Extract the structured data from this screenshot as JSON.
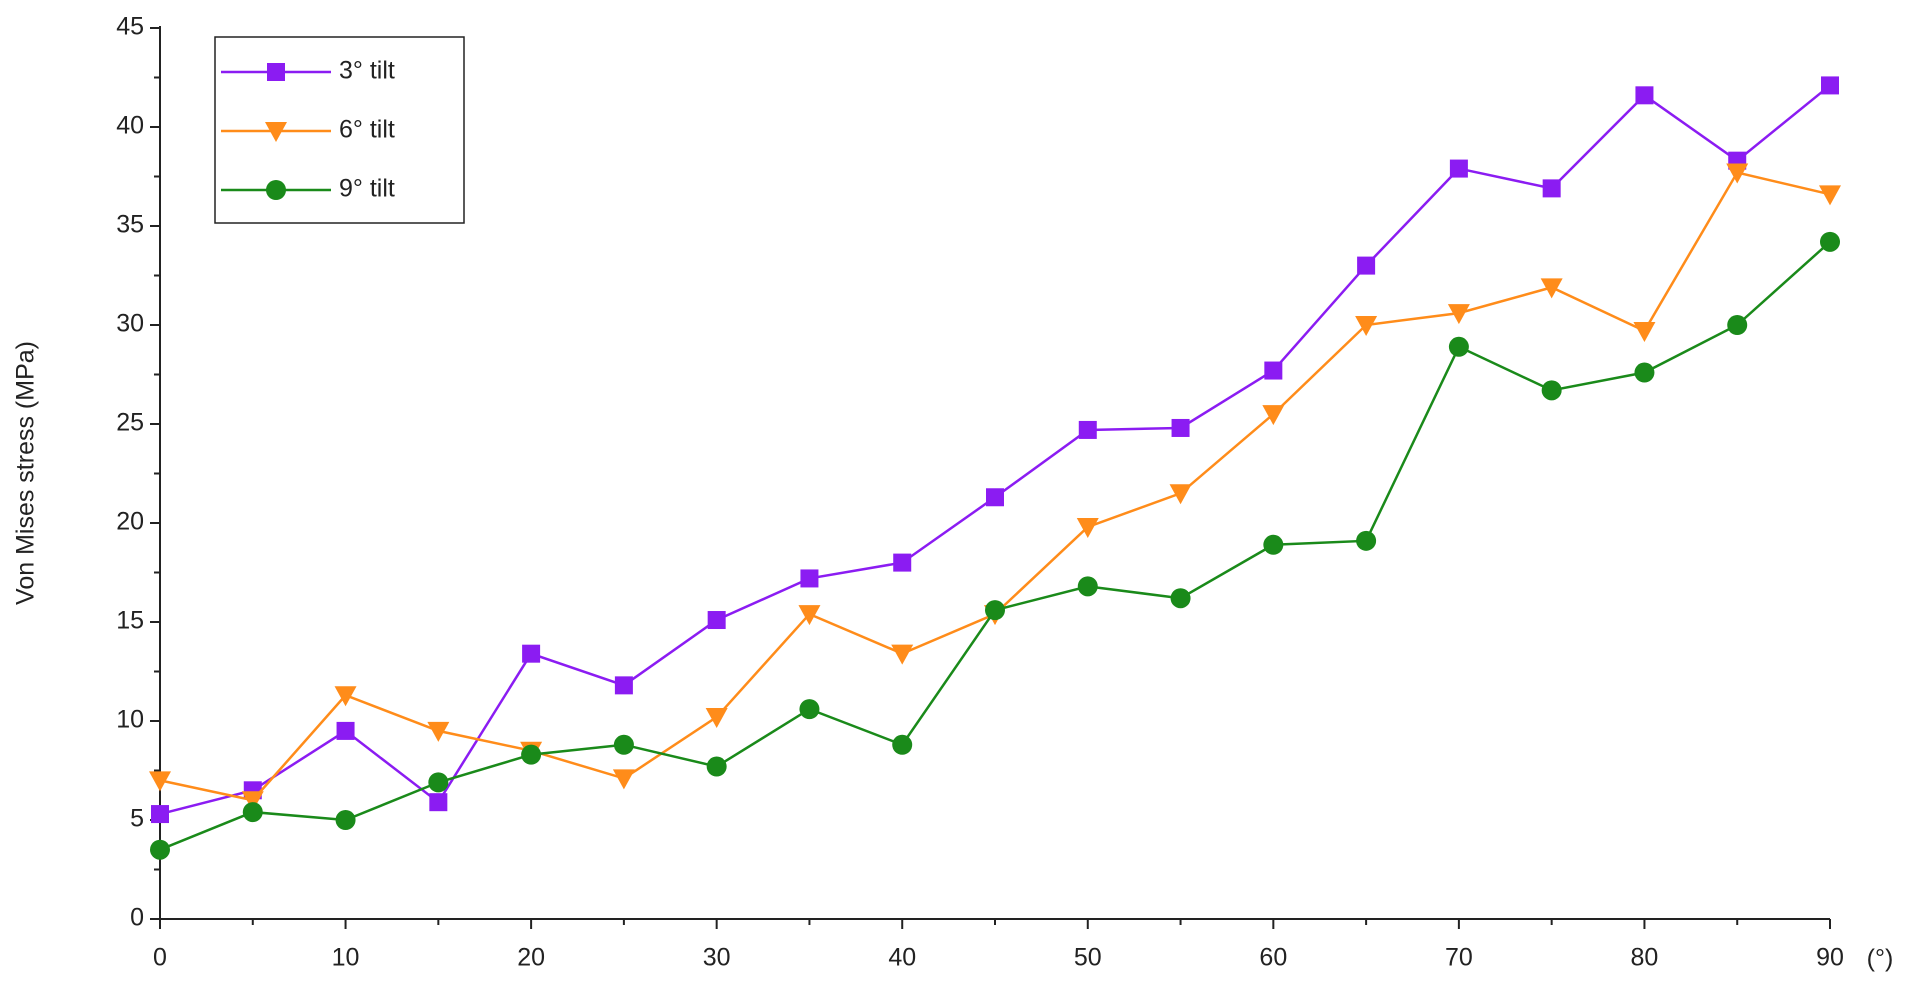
{
  "chart_data": {
    "type": "line",
    "y_label": "Von Mises stress (MPa)",
    "x_label": "(°)",
    "x": [
      0,
      5,
      10,
      15,
      20,
      25,
      30,
      35,
      40,
      45,
      50,
      55,
      60,
      65,
      70,
      75,
      80,
      85,
      90
    ],
    "series": [
      {
        "name": "3° tilt",
        "color": "#8b1cf2",
        "marker": "square",
        "values": [
          5.3,
          6.5,
          9.5,
          5.9,
          13.4,
          11.8,
          15.1,
          17.2,
          18.0,
          21.3,
          24.7,
          24.8,
          27.7,
          33.0,
          37.9,
          36.9,
          41.6,
          38.3,
          42.1
        ]
      },
      {
        "name": "6° tilt",
        "color": "#ff8c1a",
        "marker": "triangle-down",
        "values": [
          7.0,
          6.0,
          11.3,
          9.5,
          8.5,
          7.1,
          10.2,
          15.4,
          13.4,
          15.4,
          19.8,
          21.5,
          25.5,
          30.0,
          30.6,
          31.9,
          29.7,
          37.7,
          36.6
        ]
      },
      {
        "name": "9° tilt",
        "color": "#1a8a1a",
        "marker": "circle",
        "values": [
          3.5,
          5.4,
          5.0,
          6.9,
          8.3,
          8.8,
          7.7,
          10.6,
          8.8,
          15.6,
          16.8,
          16.2,
          18.9,
          19.1,
          28.9,
          26.7,
          27.6,
          30.0,
          34.2
        ]
      }
    ],
    "xlim": [
      0,
      90
    ],
    "xticks": [
      0,
      10,
      20,
      30,
      40,
      50,
      60,
      70,
      80,
      90
    ],
    "x_minor_ticks": [
      5,
      15,
      25,
      35,
      45,
      55,
      65,
      75,
      85
    ],
    "ylim": [
      0,
      45
    ],
    "yticks": [
      0,
      5,
      10,
      15,
      20,
      25,
      30,
      35,
      40,
      45
    ],
    "y_minor_ticks": [
      2.5,
      7.5,
      12.5,
      17.5,
      22.5,
      27.5,
      32.5,
      37.5,
      42.5
    ],
    "legend": "upper left",
    "grid": false
  }
}
